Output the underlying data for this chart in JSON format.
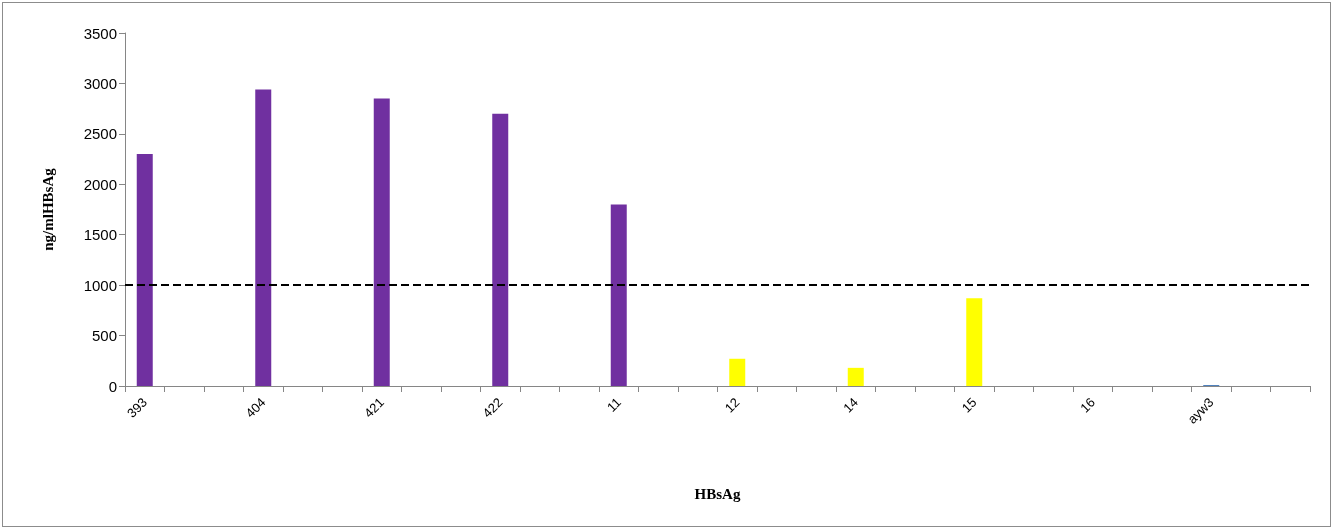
{
  "chart_data": {
    "type": "bar",
    "xlabel": "HBsAg",
    "ylabel": "ng/mlHBsAg",
    "categories": [
      "393",
      null,
      null,
      "404",
      null,
      null,
      "421",
      null,
      null,
      "422",
      null,
      null,
      "11",
      null,
      null,
      "12",
      null,
      null,
      "14",
      null,
      null,
      "15",
      null,
      null,
      "16",
      null,
      null,
      "ayw3",
      null,
      null
    ],
    "values": [
      2300,
      null,
      null,
      2940,
      null,
      null,
      2850,
      null,
      null,
      2700,
      null,
      null,
      1800,
      null,
      null,
      270,
      null,
      null,
      180,
      null,
      null,
      870,
      null,
      null,
      0,
      null,
      null,
      10,
      null,
      null
    ],
    "colors": [
      "#7030a0",
      null,
      null,
      "#7030a0",
      null,
      null,
      "#7030a0",
      null,
      null,
      "#7030a0",
      null,
      null,
      "#7030a0",
      null,
      null,
      "#ffff00",
      null,
      null,
      "#ffff00",
      null,
      null,
      "#ffff00",
      null,
      null,
      "#4f81bd",
      null,
      null,
      "#4f81bd",
      null,
      null
    ],
    "ylim": [
      0,
      3500
    ],
    "yticks": [
      0,
      500,
      1000,
      1500,
      2000,
      2500,
      3000,
      3500
    ],
    "ref_lines": [
      {
        "axis": "y",
        "value": 1000,
        "color": "#000000",
        "line_style": "dashed"
      }
    ],
    "grid": false
  }
}
